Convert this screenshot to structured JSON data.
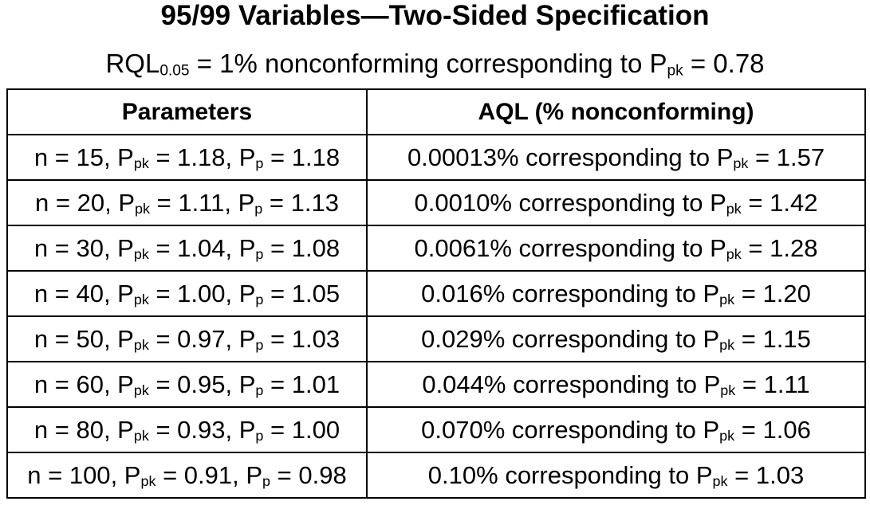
{
  "title": "95/99 Variables—Two-Sided Specification",
  "subtitle": {
    "prefix": "RQL",
    "prefix_sub": "0.05",
    "middle": " = 1% nonconforming corresponding to P",
    "p_sub": "pk",
    "suffix": " = 0.78"
  },
  "table": {
    "headers": [
      "Parameters",
      "AQL (% nonconforming)"
    ],
    "rows": [
      {
        "n": "15",
        "ppk": "1.18",
        "pp": "1.18",
        "aql": "0.00013%",
        "aql_ppk": "1.57"
      },
      {
        "n": "20",
        "ppk": "1.11",
        "pp": "1.13",
        "aql": "0.0010%",
        "aql_ppk": "1.42"
      },
      {
        "n": "30",
        "ppk": "1.04",
        "pp": "1.08",
        "aql": "0.0061%",
        "aql_ppk": "1.28"
      },
      {
        "n": "40",
        "ppk": "1.00",
        "pp": "1.05",
        "aql": "0.016%",
        "aql_ppk": "1.20"
      },
      {
        "n": "50",
        "ppk": "0.97",
        "pp": "1.03",
        "aql": "0.029%",
        "aql_ppk": "1.15"
      },
      {
        "n": "60",
        "ppk": "0.95",
        "pp": "1.01",
        "aql": "0.044%",
        "aql_ppk": "1.11"
      },
      {
        "n": "80",
        "ppk": "0.93",
        "pp": "1.00",
        "aql": "0.070%",
        "aql_ppk": "1.06"
      },
      {
        "n": "100",
        "ppk": "0.91",
        "pp": "0.98",
        "aql": "0.10%",
        "aql_ppk": "1.03"
      }
    ]
  }
}
